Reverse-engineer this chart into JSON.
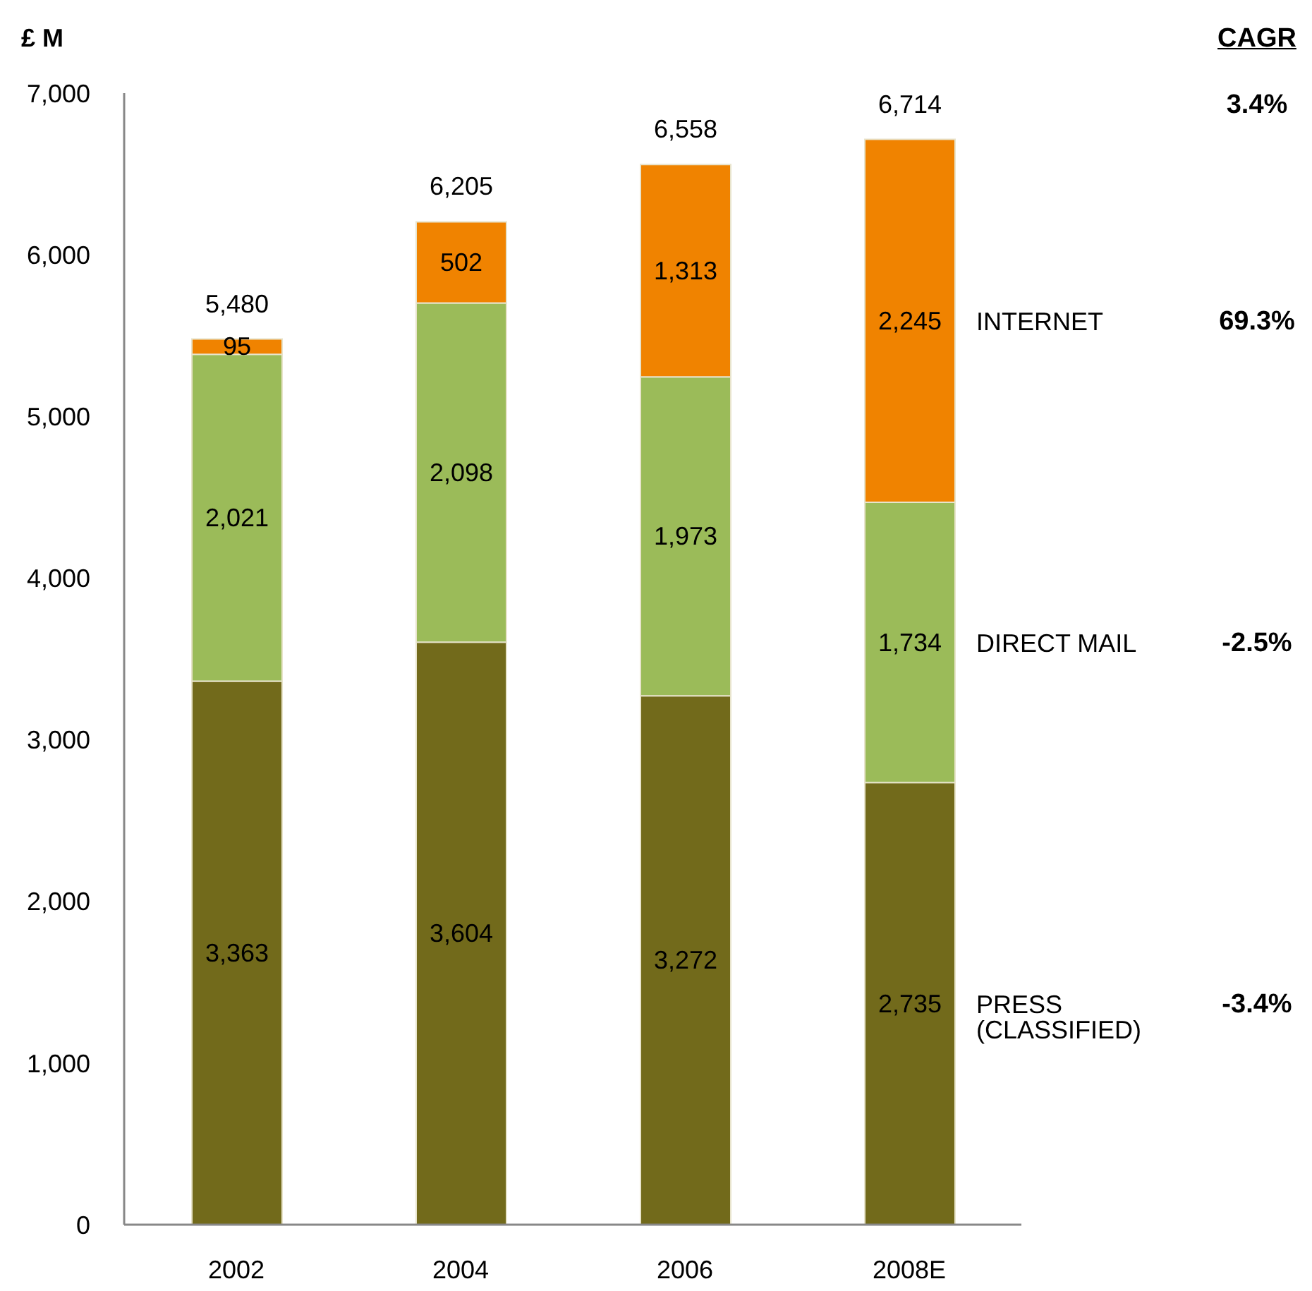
{
  "chart_data": {
    "type": "bar",
    "ylabel": "£ M",
    "categories": [
      "2002",
      "2004",
      "2006",
      "2008E"
    ],
    "series": [
      {
        "name": "PRESS (CLASSIFIED)",
        "color": "#726a1b",
        "values": [
          3363,
          3604,
          3272,
          2735
        ],
        "value_labels": [
          "3,363",
          "3,604",
          "3,272",
          "2,735"
        ]
      },
      {
        "name": "DIRECT MAIL",
        "color": "#9bbb59",
        "values": [
          2021,
          2098,
          1973,
          1734
        ],
        "value_labels": [
          "2,021",
          "2,098",
          "1,973",
          "1,734"
        ]
      },
      {
        "name": "INTERNET",
        "color": "#f08300",
        "values": [
          95,
          502,
          1313,
          2245
        ],
        "value_labels": [
          "95",
          "502",
          "1,313",
          "2,245"
        ]
      }
    ],
    "stacked": true,
    "ylim": [
      0,
      7000
    ],
    "yticks": [
      0,
      {
        "value": 1000,
        "label": "1,000"
      },
      {
        "value": 2000,
        "label": "2,000"
      },
      {
        "value": 3000,
        "label": "3,000"
      },
      {
        "value": 4000,
        "label": "4,000"
      },
      {
        "value": 5000,
        "label": "5,000"
      },
      {
        "value": 6000,
        "label": "6,000"
      },
      {
        "value": 7000,
        "label": "7,000"
      }
    ],
    "totals": [
      "5,480",
      "6,205",
      "6,558",
      "6,714"
    ],
    "annotations": [
      "CAGR",
      "3.4%",
      "69.3%",
      "-2.5%",
      "-3.4%"
    ]
  }
}
